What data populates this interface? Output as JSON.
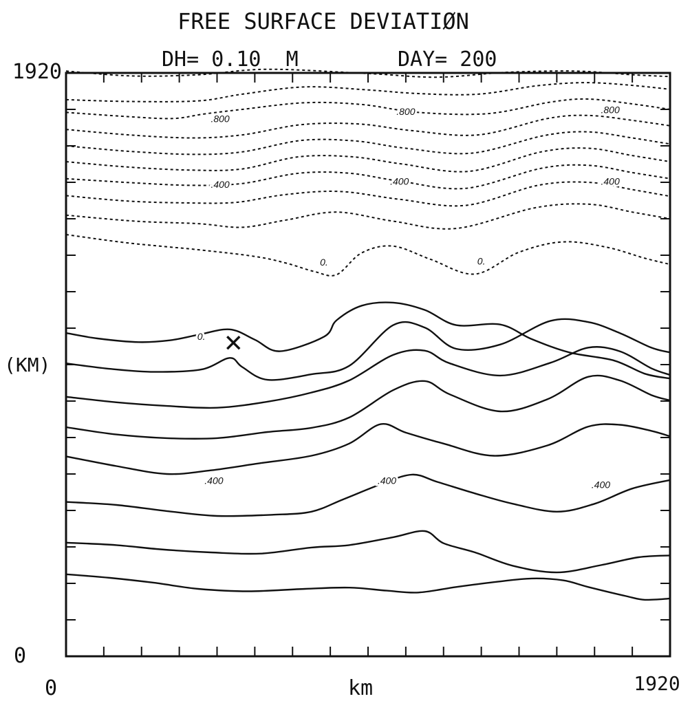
{
  "chart_data": {
    "type": "contour",
    "title": "FREE SURFACE DEVIATIØN",
    "subtitle_dh": "DH= 0.10  M",
    "subtitle_day": "DAY= 200",
    "xlabel": "km",
    "ylabel": "(KM)",
    "xlim": [
      0,
      1920
    ],
    "ylim": [
      0,
      1920
    ],
    "x_tick_labels": [
      "0",
      "1920"
    ],
    "y_tick_labels": [
      "0",
      "1920"
    ],
    "contour_interval_m": 0.1,
    "dashed_levels_note": "dashed = positive deviation, solid = zero and negative",
    "marker": {
      "symbol": "X",
      "x": 532,
      "y": 1032
    },
    "contours": [
      {
        "level": 1.0,
        "style": "dashed",
        "points": [
          [
            0,
            1926
          ],
          [
            210,
            1910
          ],
          [
            420,
            1914
          ],
          [
            640,
            1932
          ],
          [
            960,
            1918
          ],
          [
            1180,
            1906
          ],
          [
            1400,
            1922
          ],
          [
            1620,
            1926
          ],
          [
            1800,
            1914
          ],
          [
            1920,
            1908
          ]
        ]
      },
      {
        "level": 0.9,
        "style": "dashed",
        "points": [
          [
            0,
            1832
          ],
          [
            200,
            1826
          ],
          [
            420,
            1828
          ],
          [
            560,
            1850
          ],
          [
            760,
            1874
          ],
          [
            960,
            1864
          ],
          [
            1120,
            1852
          ],
          [
            1310,
            1850
          ],
          [
            1500,
            1878
          ],
          [
            1650,
            1888
          ],
          [
            1790,
            1880
          ],
          [
            1920,
            1866
          ]
        ]
      },
      {
        "level": 0.8,
        "style": "dashed",
        "points": [
          [
            0,
            1790
          ],
          [
            200,
            1776
          ],
          [
            340,
            1770
          ],
          [
            440,
            1785
          ],
          [
            560,
            1800
          ],
          [
            760,
            1822
          ],
          [
            940,
            1816
          ],
          [
            1120,
            1790
          ],
          [
            1340,
            1786
          ],
          [
            1540,
            1824
          ],
          [
            1660,
            1834
          ],
          [
            1800,
            1818
          ],
          [
            1920,
            1800
          ]
        ]
      },
      {
        "level": 0.7,
        "style": "dashed",
        "points": [
          [
            0,
            1734
          ],
          [
            200,
            1716
          ],
          [
            400,
            1706
          ],
          [
            560,
            1716
          ],
          [
            750,
            1750
          ],
          [
            930,
            1752
          ],
          [
            1100,
            1730
          ],
          [
            1310,
            1716
          ],
          [
            1530,
            1770
          ],
          [
            1660,
            1780
          ],
          [
            1800,
            1764
          ],
          [
            1920,
            1746
          ]
        ]
      },
      {
        "level": 0.6,
        "style": "dashed",
        "points": [
          [
            0,
            1680
          ],
          [
            200,
            1662
          ],
          [
            400,
            1652
          ],
          [
            560,
            1660
          ],
          [
            750,
            1698
          ],
          [
            920,
            1696
          ],
          [
            1080,
            1672
          ],
          [
            1290,
            1656
          ],
          [
            1520,
            1714
          ],
          [
            1660,
            1726
          ],
          [
            1800,
            1706
          ],
          [
            1920,
            1686
          ]
        ]
      },
      {
        "level": 0.5,
        "style": "dashed",
        "points": [
          [
            0,
            1628
          ],
          [
            200,
            1610
          ],
          [
            400,
            1600
          ],
          [
            560,
            1604
          ],
          [
            740,
            1644
          ],
          [
            910,
            1644
          ],
          [
            1070,
            1620
          ],
          [
            1280,
            1596
          ],
          [
            1510,
            1660
          ],
          [
            1660,
            1672
          ],
          [
            1800,
            1648
          ],
          [
            1920,
            1628
          ]
        ]
      },
      {
        "level": 0.4,
        "style": "dashed",
        "points": [
          [
            0,
            1572
          ],
          [
            220,
            1558
          ],
          [
            400,
            1550
          ],
          [
            560,
            1556
          ],
          [
            740,
            1590
          ],
          [
            900,
            1590
          ],
          [
            1060,
            1564
          ],
          [
            1270,
            1540
          ],
          [
            1510,
            1606
          ],
          [
            1660,
            1616
          ],
          [
            1800,
            1592
          ],
          [
            1920,
            1572
          ]
        ]
      },
      {
        "level": 0.3,
        "style": "dashed",
        "points": [
          [
            0,
            1516
          ],
          [
            200,
            1498
          ],
          [
            390,
            1492
          ],
          [
            540,
            1494
          ],
          [
            700,
            1520
          ],
          [
            870,
            1530
          ],
          [
            1060,
            1504
          ],
          [
            1270,
            1484
          ],
          [
            1500,
            1550
          ],
          [
            1660,
            1560
          ],
          [
            1800,
            1536
          ],
          [
            1920,
            1514
          ]
        ]
      },
      {
        "level": 0.2,
        "style": "dashed",
        "points": [
          [
            0,
            1452
          ],
          [
            220,
            1432
          ],
          [
            420,
            1424
          ],
          [
            560,
            1412
          ],
          [
            700,
            1436
          ],
          [
            860,
            1462
          ],
          [
            1040,
            1432
          ],
          [
            1240,
            1408
          ],
          [
            1490,
            1476
          ],
          [
            1660,
            1488
          ],
          [
            1800,
            1462
          ],
          [
            1920,
            1440
          ]
        ]
      },
      {
        "level": 0.1,
        "style": "dashed",
        "points": [
          [
            0,
            1388
          ],
          [
            200,
            1360
          ],
          [
            420,
            1338
          ],
          [
            600,
            1316
          ],
          [
            700,
            1294
          ],
          [
            790,
            1266
          ],
          [
            860,
            1256
          ],
          [
            940,
            1328
          ],
          [
            1040,
            1350
          ],
          [
            1160,
            1306
          ],
          [
            1300,
            1258
          ],
          [
            1440,
            1330
          ],
          [
            1580,
            1364
          ],
          [
            1720,
            1346
          ],
          [
            1840,
            1310
          ],
          [
            1920,
            1290
          ]
        ]
      },
      {
        "level": 0.0,
        "style": "solid",
        "points": [
          [
            0,
            1064
          ],
          [
            100,
            1046
          ],
          [
            230,
            1034
          ],
          [
            330,
            1040
          ],
          [
            420,
            1058
          ],
          [
            520,
            1076
          ],
          [
            600,
            1042
          ],
          [
            680,
            1004
          ],
          [
            820,
            1052
          ],
          [
            860,
            1106
          ],
          [
            940,
            1154
          ],
          [
            1040,
            1164
          ],
          [
            1140,
            1140
          ],
          [
            1240,
            1090
          ],
          [
            1380,
            1092
          ],
          [
            1480,
            1044
          ],
          [
            1600,
            1000
          ],
          [
            1740,
            974
          ],
          [
            1840,
            930
          ],
          [
            1920,
            914
          ]
        ]
      },
      {
        "level": -0.1,
        "style": "solid",
        "points": [
          [
            0,
            964
          ],
          [
            140,
            946
          ],
          [
            280,
            936
          ],
          [
            430,
            944
          ],
          [
            520,
            982
          ],
          [
            560,
            952
          ],
          [
            640,
            910
          ],
          [
            780,
            928
          ],
          [
            900,
            956
          ],
          [
            1040,
            1090
          ],
          [
            1140,
            1082
          ],
          [
            1240,
            1012
          ],
          [
            1380,
            1026
          ],
          [
            1540,
            1104
          ],
          [
            1660,
            1100
          ],
          [
            1760,
            1064
          ],
          [
            1860,
            1016
          ],
          [
            1920,
            1000
          ]
        ]
      },
      {
        "level": -0.2,
        "style": "solid",
        "points": [
          [
            0,
            854
          ],
          [
            160,
            836
          ],
          [
            320,
            824
          ],
          [
            480,
            818
          ],
          [
            640,
            838
          ],
          [
            780,
            868
          ],
          [
            900,
            908
          ],
          [
            1040,
            992
          ],
          [
            1140,
            1006
          ],
          [
            1220,
            964
          ],
          [
            1380,
            924
          ],
          [
            1540,
            966
          ],
          [
            1660,
            1016
          ],
          [
            1760,
            1004
          ],
          [
            1860,
            948
          ],
          [
            1920,
            926
          ]
        ]
      },
      {
        "level": -0.3,
        "style": "solid",
        "points": [
          [
            0,
            754
          ],
          [
            160,
            730
          ],
          [
            320,
            718
          ],
          [
            480,
            718
          ],
          [
            640,
            738
          ],
          [
            780,
            752
          ],
          [
            900,
            786
          ],
          [
            1040,
            876
          ],
          [
            1140,
            906
          ],
          [
            1220,
            862
          ],
          [
            1380,
            806
          ],
          [
            1530,
            846
          ],
          [
            1660,
            920
          ],
          [
            1760,
            908
          ],
          [
            1860,
            860
          ],
          [
            1920,
            842
          ]
        ]
      },
      {
        "level": -0.4,
        "style": "solid",
        "points": [
          [
            0,
            658
          ],
          [
            160,
            626
          ],
          [
            320,
            600
          ],
          [
            460,
            612
          ],
          [
            620,
            636
          ],
          [
            780,
            660
          ],
          [
            900,
            700
          ],
          [
            1000,
            764
          ],
          [
            1080,
            736
          ],
          [
            1200,
            700
          ],
          [
            1360,
            660
          ],
          [
            1530,
            694
          ],
          [
            1660,
            756
          ],
          [
            1760,
            762
          ],
          [
            1860,
            742
          ],
          [
            1920,
            724
          ]
        ]
      },
      {
        "level": -0.5,
        "style": "solid",
        "points": [
          [
            0,
            508
          ],
          [
            160,
            498
          ],
          [
            320,
            478
          ],
          [
            480,
            462
          ],
          [
            660,
            466
          ],
          [
            780,
            476
          ],
          [
            880,
            516
          ],
          [
            1000,
            566
          ],
          [
            1100,
            598
          ],
          [
            1180,
            574
          ],
          [
            1300,
            536
          ],
          [
            1420,
            502
          ],
          [
            1560,
            476
          ],
          [
            1680,
            502
          ],
          [
            1800,
            552
          ],
          [
            1920,
            580
          ]
        ]
      },
      {
        "level": -0.6,
        "style": "solid",
        "points": [
          [
            0,
            374
          ],
          [
            160,
            366
          ],
          [
            300,
            352
          ],
          [
            460,
            342
          ],
          [
            620,
            338
          ],
          [
            780,
            358
          ],
          [
            900,
            366
          ],
          [
            1040,
            392
          ],
          [
            1140,
            412
          ],
          [
            1200,
            372
          ],
          [
            1300,
            342
          ],
          [
            1420,
            298
          ],
          [
            1560,
            276
          ],
          [
            1700,
            300
          ],
          [
            1820,
            326
          ],
          [
            1920,
            332
          ]
        ]
      },
      {
        "level": -0.7,
        "style": "solid",
        "points": [
          [
            0,
            270
          ],
          [
            140,
            258
          ],
          [
            280,
            242
          ],
          [
            420,
            222
          ],
          [
            580,
            214
          ],
          [
            760,
            222
          ],
          [
            900,
            226
          ],
          [
            1020,
            216
          ],
          [
            1120,
            210
          ],
          [
            1240,
            228
          ],
          [
            1360,
            244
          ],
          [
            1480,
            256
          ],
          [
            1580,
            250
          ],
          [
            1660,
            228
          ],
          [
            1780,
            198
          ],
          [
            1840,
            186
          ],
          [
            1920,
            190
          ]
        ]
      }
    ],
    "contour_labels": [
      {
        "text": ".800",
        "x": 490,
        "y": 1766
      },
      {
        "text": ".800",
        "x": 1080,
        "y": 1790
      },
      {
        "text": ".800",
        "x": 1730,
        "y": 1796
      },
      {
        "text": ".400",
        "x": 490,
        "y": 1550
      },
      {
        "text": ".400",
        "x": 1060,
        "y": 1560
      },
      {
        "text": ".400",
        "x": 1730,
        "y": 1560
      },
      {
        "text": "0.",
        "x": 430,
        "y": 1050
      },
      {
        "text": "0.",
        "x": 820,
        "y": 1294
      },
      {
        "text": "0.",
        "x": 1320,
        "y": 1298
      },
      {
        "text": ".400",
        "x": 470,
        "y": 576
      },
      {
        "text": ".400",
        "x": 1020,
        "y": 576
      },
      {
        "text": ".400",
        "x": 1700,
        "y": 562
      }
    ]
  }
}
